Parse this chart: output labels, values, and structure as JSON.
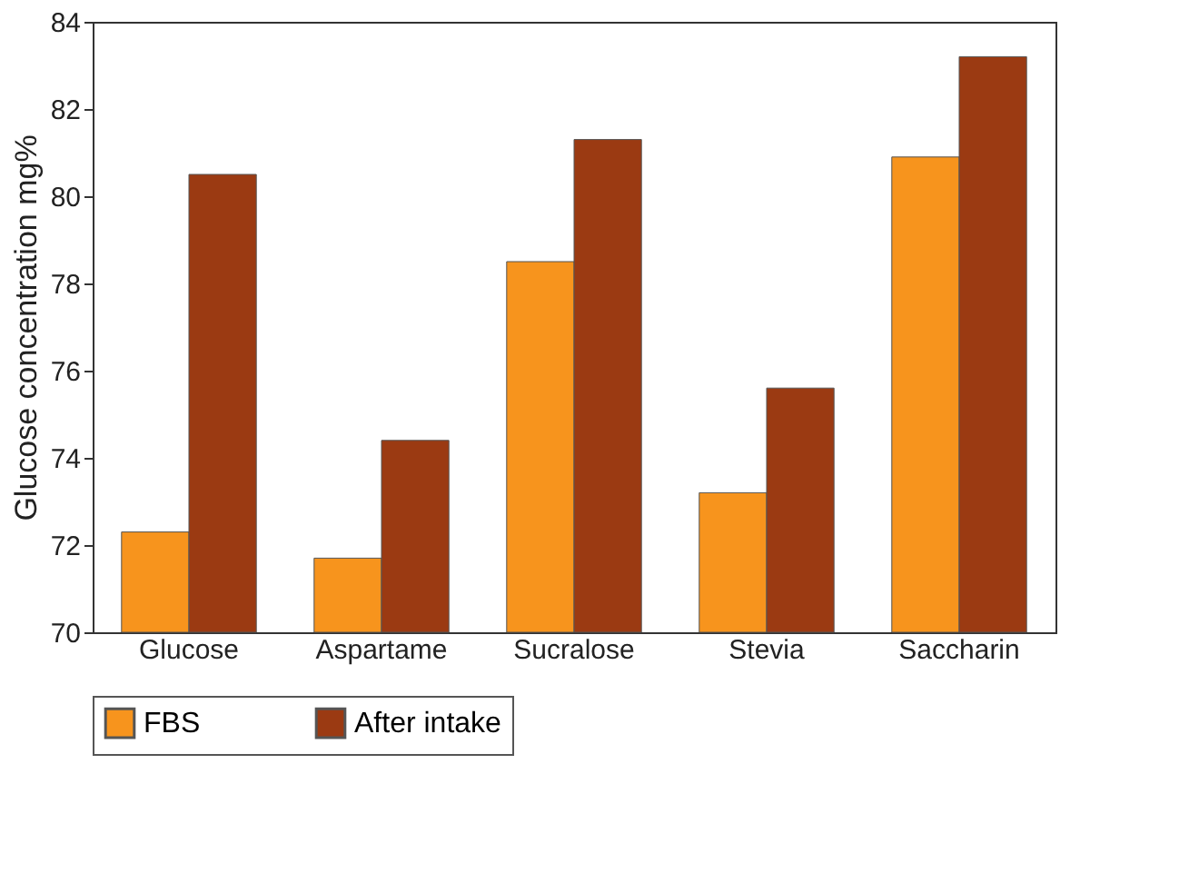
{
  "chart_data": {
    "type": "bar",
    "categories": [
      "Glucose",
      "Aspartame",
      "Sucralose",
      "Stevia",
      "Saccharin"
    ],
    "series": [
      {
        "name": "FBS",
        "color": "#f7941d",
        "values": [
          72.3,
          71.7,
          78.5,
          73.2,
          80.9
        ]
      },
      {
        "name": "After intake",
        "color": "#9b3a12",
        "values": [
          80.5,
          74.4,
          81.3,
          75.6,
          83.2
        ]
      }
    ],
    "ylabel": "Glucose concentration mg%",
    "ylim": [
      70,
      84
    ],
    "yticks": [
      70,
      72,
      74,
      76,
      78,
      80,
      82,
      84
    ],
    "grid": false,
    "legend": "bottom"
  }
}
